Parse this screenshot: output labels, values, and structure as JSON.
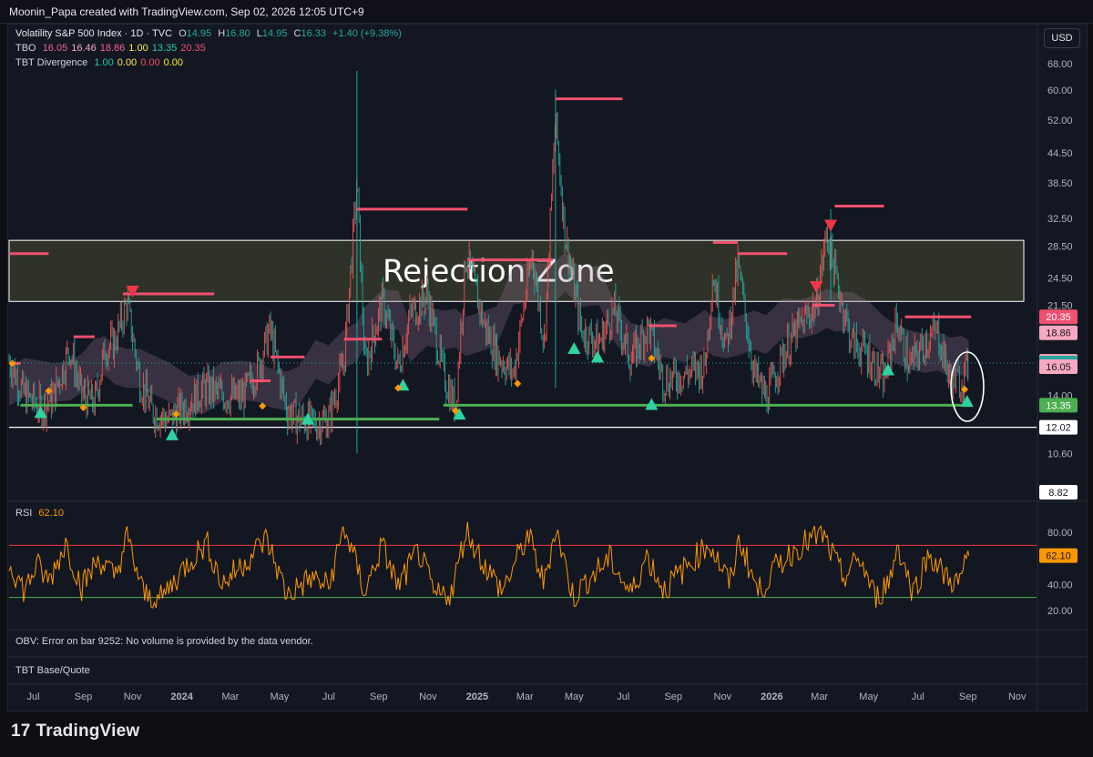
{
  "header": {
    "credit": "Moonin_Papa created with TradingView.com, Sep 02, 2026 12:05 UTC+9"
  },
  "currency_button": "USD",
  "legend": {
    "symbol": "Volatility S&P 500 Index · 1D · TVC",
    "o_label": "O",
    "o": "14.95",
    "h_label": "H",
    "h": "16.80",
    "l_label": "L",
    "l": "14.95",
    "c_label": "C",
    "c": "16.33",
    "change": "+1.40 (+9.38%)",
    "tbo_label": "TBO",
    "tbo_values": [
      "16.05",
      "16.46",
      "18.86",
      "1.00",
      "13.35",
      "20.35"
    ],
    "tbo_colors": [
      "#f06292",
      "#f8a8c0",
      "#f06292",
      "#ffeb3b",
      "#26c6a0",
      "#f0506e"
    ],
    "div_label": "TBT Divergence",
    "div_values": [
      "1.00",
      "0.00",
      "0.00",
      "0.00"
    ],
    "div_colors": [
      "#26c6a0",
      "#ffeb3b",
      "#f0506e",
      "#ffeb3b"
    ]
  },
  "panes": {
    "rsi_label": "RSI",
    "rsi_value": "62.10",
    "obv_text": "OBV: Error on bar 9252: No volume is provided by the data vendor.",
    "tbt_text": "TBT Base/Quote"
  },
  "logo": {
    "text": "TradingView",
    "mark": "17"
  },
  "colors": {
    "up": "#26a69a",
    "down": "#ef5350",
    "rsi": "#ff9800",
    "resistance": "#f0506e",
    "support": "#4caf50",
    "triangle_up": "#2ed3a0",
    "triangle_down": "#f23645"
  },
  "chart_data": {
    "type": "line",
    "title": "",
    "y_scale": "log",
    "y_ticks": [
      "68.00",
      "60.00",
      "52.00",
      "44.50",
      "38.50",
      "32.50",
      "28.50",
      "24.50",
      "21.50",
      "14.00",
      "10.60"
    ],
    "x_ticks": [
      "Jul",
      "Sep",
      "Nov",
      "2024",
      "Mar",
      "May",
      "Jul",
      "Sep",
      "Nov",
      "2025",
      "Mar",
      "May",
      "Jul",
      "Sep",
      "Nov",
      "2026",
      "Mar",
      "May",
      "Jul",
      "Sep",
      "Nov"
    ],
    "x_start": "2023-06",
    "x_end": "2026-11",
    "price_badges": [
      {
        "label": "20.35",
        "value": 20.35,
        "color": "#f0506e"
      },
      {
        "label": "18.86",
        "value": 18.86,
        "color": "#f8a8c0"
      },
      {
        "label": "16.46",
        "value": 16.46,
        "color": "#f8a8c0"
      },
      {
        "label": "16.33",
        "value": 16.33,
        "color": "#26a69a"
      },
      {
        "label": "16.05",
        "value": 16.05,
        "color": "#f8a8c0"
      },
      {
        "label": "13.35",
        "value": 13.35,
        "color": "#4caf50"
      },
      {
        "label": "12.02",
        "value": 12.02,
        "color": "#ffffff"
      },
      {
        "label": "8.82",
        "value": 8.82,
        "color": "#ffffff"
      }
    ],
    "rejection_zone": {
      "label": "Rejection Zone",
      "low": 21.9,
      "high": 29.3
    },
    "support_level": 12.02,
    "vix_close_path": [
      [
        "2023-06-01",
        16.5
      ],
      [
        "2023-06-20",
        14.0
      ],
      [
        "2023-07-10",
        13.2
      ],
      [
        "2023-07-25",
        13.8
      ],
      [
        "2023-08-15",
        17.5
      ],
      [
        "2023-08-30",
        14.0
      ],
      [
        "2023-09-15",
        13.5
      ],
      [
        "2023-09-28",
        17.5
      ],
      [
        "2023-10-10",
        18.0
      ],
      [
        "2023-10-25",
        21.8
      ],
      [
        "2023-11-10",
        15.0
      ],
      [
        "2023-11-25",
        13.0
      ],
      [
        "2023-12-15",
        12.4
      ],
      [
        "2024-01-10",
        13.5
      ],
      [
        "2024-01-30",
        14.5
      ],
      [
        "2024-02-20",
        14.0
      ],
      [
        "2024-03-15",
        13.8
      ],
      [
        "2024-04-05",
        16.0
      ],
      [
        "2024-04-19",
        19.2
      ],
      [
        "2024-05-10",
        13.0
      ],
      [
        "2024-05-25",
        12.5
      ],
      [
        "2024-06-15",
        12.2
      ],
      [
        "2024-07-01",
        12.5
      ],
      [
        "2024-07-20",
        16.5
      ],
      [
        "2024-08-05",
        38.5
      ],
      [
        "2024-08-15",
        16.0
      ],
      [
        "2024-09-06",
        22.0
      ],
      [
        "2024-09-25",
        16.0
      ],
      [
        "2024-10-10",
        20.5
      ],
      [
        "2024-10-31",
        22.5
      ],
      [
        "2024-11-20",
        15.5
      ],
      [
        "2024-12-05",
        13.2
      ],
      [
        "2024-12-18",
        27.5
      ],
      [
        "2025-01-10",
        19.5
      ],
      [
        "2025-01-25",
        17.0
      ],
      [
        "2025-02-15",
        15.5
      ],
      [
        "2025-03-10",
        27.5
      ],
      [
        "2025-03-25",
        18.0
      ],
      [
        "2025-04-08",
        52.0
      ],
      [
        "2025-04-20",
        30.0
      ],
      [
        "2025-05-10",
        19.0
      ],
      [
        "2025-06-01",
        18.0
      ],
      [
        "2025-06-20",
        21.0
      ],
      [
        "2025-07-10",
        16.5
      ],
      [
        "2025-08-01",
        19.5
      ],
      [
        "2025-08-20",
        15.0
      ],
      [
        "2025-09-15",
        15.5
      ],
      [
        "2025-10-10",
        16.0
      ],
      [
        "2025-10-20",
        25.0
      ],
      [
        "2025-11-05",
        17.5
      ],
      [
        "2025-11-20",
        26.0
      ],
      [
        "2025-12-10",
        15.5
      ],
      [
        "2025-12-25",
        13.8
      ],
      [
        "2026-01-15",
        17.0
      ],
      [
        "2026-02-05",
        19.5
      ],
      [
        "2026-02-25",
        21.5
      ],
      [
        "2026-03-10",
        30.5
      ],
      [
        "2026-03-20",
        25.0
      ],
      [
        "2026-04-10",
        18.0
      ],
      [
        "2026-04-30",
        17.0
      ],
      [
        "2026-05-20",
        15.0
      ],
      [
        "2026-06-05",
        20.0
      ],
      [
        "2026-06-20",
        16.0
      ],
      [
        "2026-07-10",
        18.0
      ],
      [
        "2026-07-25",
        19.0
      ],
      [
        "2026-08-10",
        15.0
      ],
      [
        "2026-08-25",
        14.95
      ],
      [
        "2026-09-02",
        16.33
      ]
    ],
    "resistance_segments": [
      {
        "from": "2023-06-01",
        "to": "2023-07-20",
        "value": 27.5
      },
      {
        "from": "2023-06-01",
        "to": "2023-06-15",
        "value": 16.3
      },
      {
        "from": "2023-08-20",
        "to": "2023-09-15",
        "value": 18.5
      },
      {
        "from": "2023-10-20",
        "to": "2024-02-10",
        "value": 22.7
      },
      {
        "from": "2024-03-25",
        "to": "2024-04-20",
        "value": 15.0
      },
      {
        "from": "2024-04-20",
        "to": "2024-06-01",
        "value": 16.8
      },
      {
        "from": "2024-07-20",
        "to": "2024-09-05",
        "value": 18.3
      },
      {
        "from": "2024-08-05",
        "to": "2024-12-20",
        "value": 34.0
      },
      {
        "from": "2024-12-20",
        "to": "2025-04-05",
        "value": 26.7
      },
      {
        "from": "2025-04-08",
        "to": "2025-06-30",
        "value": 57.5
      },
      {
        "from": "2025-08-01",
        "to": "2025-09-05",
        "value": 19.5
      },
      {
        "from": "2025-10-20",
        "to": "2025-11-20",
        "value": 29.0
      },
      {
        "from": "2025-11-20",
        "to": "2026-01-20",
        "value": 27.5
      },
      {
        "from": "2026-02-20",
        "to": "2026-03-20",
        "value": 21.5
      },
      {
        "from": "2026-03-20",
        "to": "2026-05-20",
        "value": 34.5
      },
      {
        "from": "2026-06-15",
        "to": "2026-09-05",
        "value": 20.35
      }
    ],
    "support_segments": [
      {
        "from": "2023-06-15",
        "to": "2023-11-01",
        "value": 13.35
      },
      {
        "from": "2023-12-01",
        "to": "2024-11-15",
        "value": 12.5
      },
      {
        "from": "2024-11-20",
        "to": "2026-09-05",
        "value": 13.35
      }
    ],
    "signals_up": [
      [
        "2023-07-10",
        12.9
      ],
      [
        "2023-12-20",
        11.6
      ],
      [
        "2024-06-05",
        12.5
      ],
      [
        "2024-10-01",
        14.7
      ],
      [
        "2024-12-10",
        12.8
      ],
      [
        "2025-05-01",
        17.5
      ],
      [
        "2025-05-30",
        16.8
      ],
      [
        "2025-08-05",
        13.4
      ],
      [
        "2026-05-25",
        15.8
      ],
      [
        "2026-08-31",
        13.6
      ]
    ],
    "signals_down": [
      [
        "2023-11-01",
        23.0
      ],
      [
        "2026-02-25",
        23.5
      ],
      [
        "2026-03-15",
        31.5
      ]
    ],
    "divergence_points": [
      [
        "2023-06-05",
        16.3
      ],
      [
        "2023-07-20",
        14.3
      ],
      [
        "2023-09-01",
        13.2
      ],
      [
        "2023-12-25",
        12.8
      ],
      [
        "2024-04-10",
        13.3
      ],
      [
        "2024-09-25",
        14.5
      ],
      [
        "2024-12-05",
        13.0
      ],
      [
        "2025-02-20",
        14.8
      ],
      [
        "2025-08-05",
        16.7
      ],
      [
        "2026-08-28",
        14.4
      ]
    ],
    "rsi": {
      "label": "RSI",
      "last": 62.1,
      "upper": 70,
      "lower": 30,
      "y_ticks": [
        "80.00",
        "40.00",
        "20.00"
      ],
      "path": [
        [
          "2023-06-01",
          58
        ],
        [
          "2023-06-20",
          35
        ],
        [
          "2023-07-05",
          55
        ],
        [
          "2023-07-20",
          42
        ],
        [
          "2023-08-10",
          72
        ],
        [
          "2023-08-30",
          38
        ],
        [
          "2023-09-20",
          60
        ],
        [
          "2023-10-10",
          45
        ],
        [
          "2023-10-25",
          76
        ],
        [
          "2023-11-15",
          32
        ],
        [
          "2023-12-05",
          28
        ],
        [
          "2024-01-10",
          58
        ],
        [
          "2024-02-01",
          72
        ],
        [
          "2024-02-20",
          40
        ],
        [
          "2024-03-15",
          55
        ],
        [
          "2024-04-15",
          75
        ],
        [
          "2024-05-10",
          32
        ],
        [
          "2024-06-10",
          45
        ],
        [
          "2024-07-01",
          38
        ],
        [
          "2024-07-20",
          84
        ],
        [
          "2024-08-15",
          34
        ],
        [
          "2024-09-05",
          70
        ],
        [
          "2024-09-25",
          38
        ],
        [
          "2024-10-20",
          66
        ],
        [
          "2024-11-10",
          30
        ],
        [
          "2024-12-01",
          35
        ],
        [
          "2024-12-18",
          82
        ],
        [
          "2025-01-10",
          55
        ],
        [
          "2025-02-01",
          35
        ],
        [
          "2025-03-05",
          78
        ],
        [
          "2025-03-25",
          40
        ],
        [
          "2025-04-08",
          85
        ],
        [
          "2025-04-30",
          30
        ],
        [
          "2025-05-20",
          45
        ],
        [
          "2025-06-15",
          60
        ],
        [
          "2025-07-10",
          32
        ],
        [
          "2025-07-30",
          62
        ],
        [
          "2025-08-20",
          36
        ],
        [
          "2025-09-20",
          55
        ],
        [
          "2025-10-15",
          72
        ],
        [
          "2025-11-10",
          40
        ],
        [
          "2025-11-22",
          75
        ],
        [
          "2025-12-15",
          34
        ],
        [
          "2026-01-10",
          56
        ],
        [
          "2026-02-05",
          70
        ],
        [
          "2026-03-05",
          78
        ],
        [
          "2026-03-30",
          45
        ],
        [
          "2026-04-20",
          60
        ],
        [
          "2026-05-10",
          28
        ],
        [
          "2026-05-30",
          48
        ],
        [
          "2026-06-05",
          72
        ],
        [
          "2026-06-25",
          34
        ],
        [
          "2026-07-15",
          64
        ],
        [
          "2026-08-01",
          48
        ],
        [
          "2026-08-20",
          40
        ],
        [
          "2026-09-02",
          62.1
        ]
      ]
    }
  }
}
